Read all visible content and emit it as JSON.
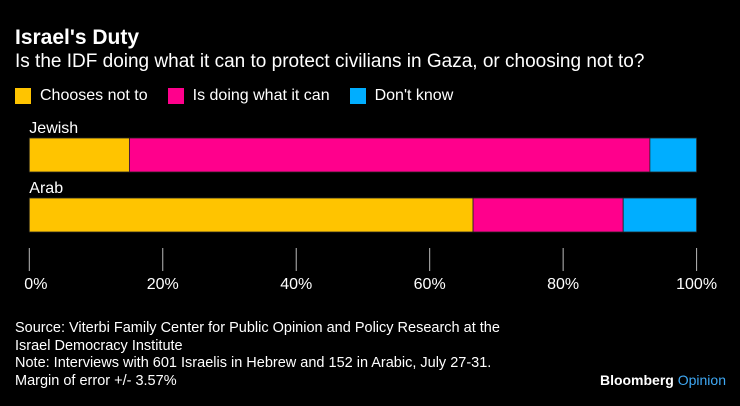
{
  "chart_data": {
    "type": "bar",
    "orientation": "horizontal",
    "stacked": true,
    "title": "Israel's Duty",
    "subtitle": "Is the IDF doing what it can to protect civilians in Gaza, or choosing not to?",
    "categories": [
      "Jewish",
      "Arab"
    ],
    "series": [
      {
        "name": "Chooses not to",
        "color": "#ffc400",
        "values": [
          15,
          66.5
        ]
      },
      {
        "name": "Is doing what it can",
        "color": "#ff008c",
        "values": [
          78,
          22.5
        ]
      },
      {
        "name": "Don't know",
        "color": "#00aeff",
        "values": [
          7,
          11
        ]
      }
    ],
    "xlim": [
      0,
      100
    ],
    "xticks": [
      "0%",
      "20%",
      "40%",
      "60%",
      "80%",
      "100%"
    ],
    "legend": "top-left",
    "grid": false
  },
  "notes": [
    "Source: Viterbi Family Center for Public Opinion and Policy Research at the",
    "Israel Democracy Institute",
    "Note: Interviews with 601 Israelis in Hebrew and 152 in Arabic, July 27-31.",
    "Margin of error +/- 3.57%"
  ],
  "logo": {
    "brand": "Bloomberg",
    "section": "Opinion"
  }
}
